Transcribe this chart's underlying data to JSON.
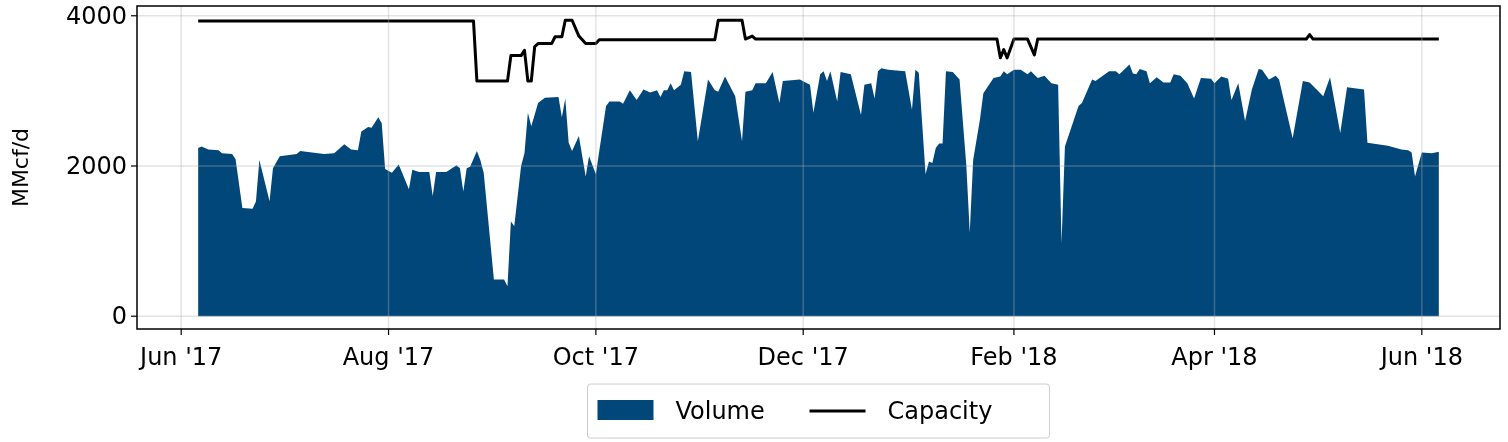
{
  "chart_data": {
    "type": "area",
    "ylabel": "MMcf/d",
    "xlim": [
      "2017-05-19",
      "2018-06-24"
    ],
    "ylim": [
      -170,
      4130
    ],
    "xticks": [
      {
        "value": "2017-06-01",
        "label": "Jun '17"
      },
      {
        "value": "2017-08-01",
        "label": "Aug '17"
      },
      {
        "value": "2017-10-01",
        "label": "Oct '17"
      },
      {
        "value": "2017-12-01",
        "label": "Dec '17"
      },
      {
        "value": "2018-02-01",
        "label": "Feb '18"
      },
      {
        "value": "2018-04-01",
        "label": "Apr '18"
      },
      {
        "value": "2018-06-01",
        "label": "Jun '18"
      }
    ],
    "yticks": [
      0,
      2000,
      4000
    ],
    "grid": true,
    "legend": "bottom",
    "series": [
      {
        "name": "Volume",
        "color": "#02477a",
        "x": [
          "2017-06-06",
          "2017-06-07",
          "2017-06-09",
          "2017-06-12",
          "2017-06-13",
          "2017-06-16",
          "2017-06-17",
          "2017-06-19",
          "2017-06-22",
          "2017-06-23",
          "2017-06-24",
          "2017-06-27",
          "2017-06-28",
          "2017-06-30",
          "2017-07-05",
          "2017-07-06",
          "2017-07-13",
          "2017-07-16",
          "2017-07-19",
          "2017-07-21",
          "2017-07-23",
          "2017-07-24",
          "2017-07-26",
          "2017-07-27",
          "2017-07-29",
          "2017-07-30",
          "2017-07-31",
          "2017-08-02",
          "2017-08-04",
          "2017-08-07",
          "2017-08-08",
          "2017-08-10",
          "2017-08-13",
          "2017-08-14",
          "2017-08-15",
          "2017-08-18",
          "2017-08-21",
          "2017-08-22",
          "2017-08-23",
          "2017-08-24",
          "2017-08-25",
          "2017-08-27",
          "2017-08-28",
          "2017-08-29",
          "2017-09-01",
          "2017-09-04",
          "2017-09-05",
          "2017-09-06",
          "2017-09-07",
          "2017-09-09",
          "2017-09-10",
          "2017-09-11",
          "2017-09-12",
          "2017-09-14",
          "2017-09-16",
          "2017-09-20",
          "2017-09-21",
          "2017-09-22",
          "2017-09-23",
          "2017-09-24",
          "2017-09-26",
          "2017-09-28",
          "2017-09-29",
          "2017-10-01",
          "2017-10-02",
          "2017-10-04",
          "2017-10-05",
          "2017-10-08",
          "2017-10-09",
          "2017-10-11",
          "2017-10-13",
          "2017-10-15",
          "2017-10-17",
          "2017-10-19",
          "2017-10-20",
          "2017-10-21",
          "2017-10-22",
          "2017-10-23",
          "2017-10-24",
          "2017-10-26",
          "2017-10-27",
          "2017-10-29",
          "2017-10-31",
          "2017-11-03",
          "2017-11-05",
          "2017-11-06",
          "2017-11-08",
          "2017-11-11",
          "2017-11-13",
          "2017-11-14",
          "2017-11-16",
          "2017-11-17",
          "2017-11-20",
          "2017-11-22",
          "2017-11-24",
          "2017-11-25",
          "2017-11-30",
          "2017-12-03",
          "2017-12-04",
          "2017-12-06",
          "2017-12-07",
          "2017-12-08",
          "2017-12-09",
          "2017-12-11",
          "2017-12-12",
          "2017-12-15",
          "2017-12-18",
          "2017-12-19",
          "2017-12-21",
          "2017-12-22",
          "2017-12-23",
          "2017-12-24",
          "2017-12-26",
          "2017-12-31",
          "2018-01-02",
          "2018-01-03",
          "2018-01-04",
          "2018-01-06",
          "2018-01-07",
          "2018-01-08",
          "2018-01-09",
          "2018-01-10",
          "2018-01-11",
          "2018-01-12",
          "2018-01-14",
          "2018-01-16",
          "2018-01-18",
          "2018-01-19",
          "2018-01-20",
          "2018-01-22",
          "2018-01-23",
          "2018-01-26",
          "2018-01-28",
          "2018-01-29",
          "2018-01-30",
          "2018-02-01",
          "2018-02-03",
          "2018-02-05",
          "2018-02-06",
          "2018-02-08",
          "2018-02-10",
          "2018-02-12",
          "2018-02-14",
          "2018-02-15",
          "2018-02-16",
          "2018-02-20",
          "2018-02-21",
          "2018-02-24",
          "2018-02-25",
          "2018-03-01",
          "2018-03-03",
          "2018-03-04",
          "2018-03-07",
          "2018-03-08",
          "2018-03-09",
          "2018-03-10",
          "2018-03-12",
          "2018-03-13",
          "2018-03-15",
          "2018-03-17",
          "2018-03-19",
          "2018-03-20",
          "2018-03-22",
          "2018-03-24",
          "2018-03-26",
          "2018-03-28",
          "2018-03-31",
          "2018-04-01",
          "2018-04-03",
          "2018-04-05",
          "2018-04-06",
          "2018-04-08",
          "2018-04-10",
          "2018-04-12",
          "2018-04-14",
          "2018-04-15",
          "2018-04-17",
          "2018-04-19",
          "2018-04-20",
          "2018-04-24",
          "2018-04-27",
          "2018-04-29",
          "2018-05-03",
          "2018-05-05",
          "2018-05-08",
          "2018-05-10",
          "2018-05-15",
          "2018-05-16",
          "2018-05-22",
          "2018-05-26",
          "2018-05-28",
          "2018-05-29",
          "2018-05-30",
          "2018-06-01",
          "2018-06-04",
          "2018-06-06"
        ],
        "values": [
          2240,
          2260,
          2220,
          2210,
          2170,
          2160,
          2090,
          1440,
          1430,
          1530,
          2080,
          1530,
          1970,
          2130,
          2160,
          2200,
          2160,
          2170,
          2290,
          2220,
          2210,
          2460,
          2520,
          2510,
          2650,
          2570,
          1960,
          1910,
          2020,
          1690,
          1950,
          1920,
          1920,
          1600,
          1920,
          1920,
          2010,
          1970,
          1660,
          1970,
          1990,
          2200,
          2080,
          1910,
          490,
          490,
          400,
          1260,
          1200,
          2000,
          2170,
          2710,
          2530,
          2840,
          2910,
          2920,
          2650,
          2900,
          2310,
          2200,
          2400,
          1860,
          2130,
          1890,
          2200,
          2800,
          2860,
          2860,
          2830,
          3010,
          2880,
          3020,
          2980,
          3010,
          2920,
          3010,
          3010,
          3100,
          3010,
          3080,
          3260,
          3250,
          2330,
          3150,
          3010,
          2990,
          3190,
          2930,
          2330,
          2990,
          3010,
          3100,
          3100,
          3250,
          2840,
          3130,
          3150,
          3080,
          2710,
          3220,
          3260,
          3130,
          3260,
          2860,
          3250,
          3220,
          2680,
          3080,
          3100,
          2900,
          3260,
          3300,
          3280,
          3260,
          2750,
          3280,
          3240,
          1890,
          2060,
          2040,
          2240,
          2300,
          2300,
          3260,
          3250,
          3150,
          2000,
          1110,
          2080,
          2620,
          2970,
          3170,
          3190,
          3260,
          3220,
          3280,
          3280,
          3220,
          3260,
          3170,
          3200,
          3100,
          3080,
          970,
          2260,
          2800,
          2840,
          3150,
          3130,
          3260,
          3260,
          3220,
          3350,
          3230,
          3220,
          3290,
          3260,
          3100,
          3180,
          3110,
          3110,
          3220,
          3200,
          3100,
          2900,
          3170,
          3160,
          3100,
          3190,
          3160,
          2880,
          3100,
          2600,
          3020,
          3290,
          3280,
          3150,
          3200,
          3150,
          2370,
          3130,
          3110,
          2930,
          3180,
          2440,
          3050,
          3020,
          2310,
          2270,
          2220,
          2210,
          2180,
          1860,
          2180,
          2170,
          2190
        ]
      },
      {
        "name": "Capacity",
        "type": "line",
        "color": "#000000",
        "x": [
          "2017-06-06",
          "2017-08-26",
          "2017-08-27",
          "2017-09-05",
          "2017-09-06",
          "2017-09-09",
          "2017-09-10",
          "2017-09-11",
          "2017-09-12",
          "2017-09-13",
          "2017-09-14",
          "2017-09-18",
          "2017-09-19",
          "2017-09-21",
          "2017-09-22",
          "2017-09-24",
          "2017-09-26",
          "2017-09-28",
          "2017-10-01",
          "2017-10-02",
          "2017-11-05",
          "2017-11-06",
          "2017-11-13",
          "2017-11-14",
          "2017-11-16",
          "2017-11-17",
          "2018-01-27",
          "2018-01-28",
          "2018-01-29",
          "2018-01-30",
          "2018-02-01",
          "2018-02-05",
          "2018-02-07",
          "2018-02-08",
          "2018-04-28",
          "2018-04-29",
          "2018-04-30",
          "2018-06-06"
        ],
        "values": [
          3930,
          3930,
          3130,
          3130,
          3470,
          3470,
          3540,
          3130,
          3130,
          3590,
          3630,
          3630,
          3720,
          3720,
          3940,
          3940,
          3730,
          3630,
          3630,
          3680,
          3680,
          3940,
          3940,
          3690,
          3730,
          3690,
          3690,
          3440,
          3550,
          3440,
          3690,
          3690,
          3480,
          3690,
          3690,
          3750,
          3690,
          3690
        ]
      }
    ]
  }
}
